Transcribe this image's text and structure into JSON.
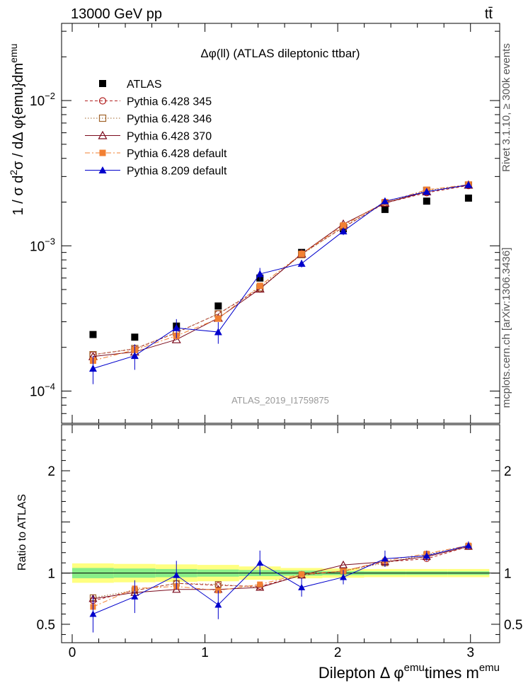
{
  "header": {
    "left": "13000 GeV pp",
    "right": "tt̄"
  },
  "side": {
    "rivet": "Rivet 3.1.10, ≥ 300k events",
    "site": "mcplots.cern.ch [arXiv:1306.3436]"
  },
  "chart_data": {
    "type": "line",
    "title": "Δφ(ll) (ATLAS dileptonic ttbar)",
    "watermark": "ATLAS_2019_I1759875",
    "ylabel": "1 / σ d²σ / dΔ φ{emu}dm^emu",
    "ylabel_parts": {
      "a": "1 / σ  d",
      "b": "2",
      "c": "σ / dΔ φ{emu}dm",
      "d": "emu"
    },
    "xlabel": "Dilepton Δ φ^emu times m^emu",
    "xlabel_parts": {
      "a": "Dilepton Δ φ",
      "b": "emu",
      "c": "times m",
      "d": "emu"
    },
    "ratio_ylabel": "Ratio to ATLAS",
    "xlim": [
      -0.08,
      3.22
    ],
    "ylim": [
      6e-05,
      0.034
    ],
    "ratio_ylim": [
      0.32,
      2.45
    ],
    "x_ticks": [
      "0",
      "1",
      "2",
      "3"
    ],
    "y_ticks_main": [
      {
        "value": 0.0001,
        "base": "10",
        "exp": "−4"
      },
      {
        "value": 0.001,
        "base": "10",
        "exp": "−3"
      },
      {
        "value": 0.01,
        "base": "10",
        "exp": "−2"
      }
    ],
    "y_ticks_ratio": [
      "0.5",
      "1",
      "2"
    ],
    "x": [
      0.157,
      0.471,
      0.785,
      1.1,
      1.414,
      1.728,
      2.042,
      2.356,
      2.67,
      2.985
    ],
    "series": [
      {
        "name": "ATLAS",
        "color": "#000000",
        "marker": "square-filled",
        "line": "none",
        "values": [
          0.000245,
          0.000235,
          0.00028,
          0.000385,
          0.0006,
          0.0009,
          0.00131,
          0.00178,
          0.00203,
          0.00213
        ],
        "ratio": [
          1,
          1,
          1,
          1,
          1,
          1,
          1,
          1,
          1,
          1
        ]
      },
      {
        "name": "Pythia 6.428 345",
        "color": "#b22222",
        "marker": "circle-open",
        "line": "dashed",
        "values": [
          0.000178,
          0.000195,
          0.000252,
          0.00034,
          0.000505,
          0.00088,
          0.00134,
          0.00197,
          0.00232,
          0.0026
        ],
        "ratio": [
          0.73,
          0.83,
          0.9,
          0.88,
          0.87,
          0.98,
          1.02,
          1.11,
          1.14,
          1.26
        ]
      },
      {
        "name": "Pythia 6.428 346",
        "color": "#a0632a",
        "marker": "square-open",
        "line": "dotted",
        "values": [
          0.000178,
          0.000196,
          0.000253,
          0.00034,
          0.000515,
          0.00087,
          0.00135,
          0.00197,
          0.00241,
          0.00262
        ],
        "ratio": [
          0.76,
          0.83,
          0.9,
          0.89,
          0.86,
          0.98,
          1.02,
          1.1,
          1.18,
          1.26
        ]
      },
      {
        "name": "Pythia 6.428 370",
        "color": "#7a0a1c",
        "marker": "triangle-open",
        "line": "solid",
        "values": [
          0.000173,
          0.000186,
          0.000226,
          0.000318,
          0.000505,
          0.00088,
          0.00141,
          0.00197,
          0.00236,
          0.00262
        ],
        "ratio": [
          0.75,
          0.81,
          0.84,
          0.84,
          0.86,
          0.98,
          1.08,
          1.11,
          1.16,
          1.26
        ]
      },
      {
        "name": "Pythia 6.428 default",
        "color": "#f28033",
        "marker": "square-filled",
        "line": "dashdot",
        "values": [
          0.000162,
          0.000192,
          0.00024,
          0.000315,
          0.00053,
          0.00088,
          0.00138,
          0.002,
          0.00243,
          0.00264
        ],
        "ratio": [
          0.67,
          0.85,
          0.87,
          0.83,
          0.89,
          0.99,
          1.02,
          1.12,
          1.19,
          1.27
        ]
      },
      {
        "name": "Pythia 8.209 default",
        "color": "#0000cc",
        "marker": "triangle-filled",
        "line": "solid",
        "values": [
          0.000143,
          0.000175,
          0.000272,
          0.000255,
          0.00064,
          0.000755,
          0.00126,
          0.00203,
          0.00236,
          0.00263
        ],
        "ratio": [
          0.6,
          0.77,
          0.98,
          0.69,
          1.1,
          0.86,
          0.96,
          1.14,
          1.17,
          1.27
        ]
      }
    ]
  }
}
